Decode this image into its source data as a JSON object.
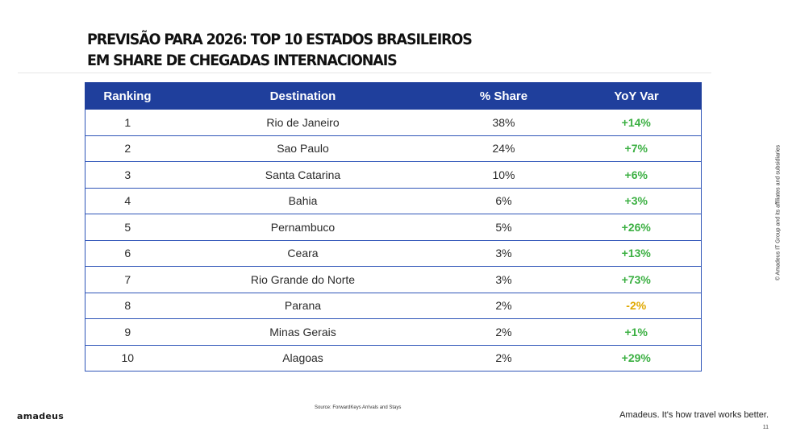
{
  "title": {
    "line1": "PREVISÃO PARA 2026: TOP 10 ESTADOS BRASILEIROS",
    "line2": "EM SHARE DE CHEGADAS INTERNACIONAIS"
  },
  "table": {
    "headers": [
      "Ranking",
      "Destination",
      "% Share",
      "YoY Var"
    ],
    "rows": [
      {
        "rank": "1",
        "destination": "Rio de Janeiro",
        "share": "38%",
        "yoy": "+14%"
      },
      {
        "rank": "2",
        "destination": "Sao Paulo",
        "share": "24%",
        "yoy": "+7%"
      },
      {
        "rank": "3",
        "destination": "Santa Catarina",
        "share": "10%",
        "yoy": "+6%"
      },
      {
        "rank": "4",
        "destination": "Bahia",
        "share": "6%",
        "yoy": "+3%"
      },
      {
        "rank": "5",
        "destination": "Pernambuco",
        "share": "5%",
        "yoy": "+26%"
      },
      {
        "rank": "6",
        "destination": "Ceara",
        "share": "3%",
        "yoy": "+13%"
      },
      {
        "rank": "7",
        "destination": "Rio Grande do Norte",
        "share": "3%",
        "yoy": "+73%"
      },
      {
        "rank": "8",
        "destination": "Parana",
        "share": "2%",
        "yoy": "-2%"
      },
      {
        "rank": "9",
        "destination": "Minas Gerais",
        "share": "2%",
        "yoy": "+1%"
      },
      {
        "rank": "10",
        "destination": "Alagoas",
        "share": "2%",
        "yoy": "+29%"
      }
    ]
  },
  "colors": {
    "header_bg": "#1f3f9c",
    "positive": "#3cb043",
    "negative": "#e0a800"
  },
  "footer": {
    "source": "Source: ForwardKeys Arrivals and Stays",
    "logo": "amadeus",
    "tagline": "Amadeus. It's how travel works better.",
    "page_number": "11",
    "copyright": "© Amadeus IT Group and its affiliates and subsidiaries"
  }
}
